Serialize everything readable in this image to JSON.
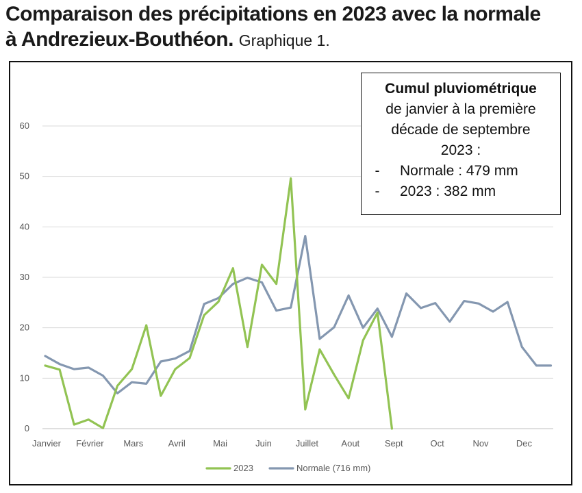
{
  "header": {
    "title_line1": "Comparaison des précipitations en 2023 avec la normale",
    "title_line2": "à Andrezieux-Bouthéon.",
    "subtitle": "Graphique 1."
  },
  "infobox": {
    "heading": "Cumul pluviométrique",
    "text1": "de janvier à la première",
    "text2": "décade de septembre",
    "text3": "2023 :",
    "bullet_marker": "-",
    "item1": "Normale : 479 mm",
    "item2": "2023 : 382 mm"
  },
  "chart_data": {
    "type": "line",
    "ylim": [
      0,
      60
    ],
    "yticks": [
      "0",
      "10",
      "20",
      "30",
      "40",
      "50",
      "60"
    ],
    "grid": "horizontal",
    "legend_position": "bottom",
    "month_labels": [
      "Janvier",
      "Février",
      "Mars",
      "Avril",
      "Mai",
      "Juin",
      "Juillet",
      "Aout",
      "Sept",
      "Oct",
      "Nov",
      "Dec"
    ],
    "series": [
      {
        "name": "2023",
        "color": "#92c353",
        "values": [
          12.5,
          11.7,
          0.8,
          1.8,
          0.1,
          8.5,
          11.8,
          20.5,
          6.5,
          11.8,
          14.0,
          22.5,
          25.2,
          31.8,
          16.2,
          32.5,
          28.7,
          49.6,
          3.8,
          15.7,
          10.7,
          6.0,
          17.5,
          23.0,
          0.0
        ]
      },
      {
        "name": "Normale (716 mm)",
        "color": "#8497b0",
        "values": [
          14.4,
          12.8,
          11.8,
          12.1,
          10.5,
          7.0,
          9.2,
          8.9,
          13.3,
          13.9,
          15.4,
          24.7,
          25.9,
          28.7,
          29.9,
          29.0,
          23.4,
          24.0,
          38.2,
          17.8,
          20.1,
          26.4,
          20.0,
          23.8,
          18.2,
          26.8,
          23.9,
          24.9,
          21.2,
          25.3,
          24.8,
          23.2,
          25.1,
          16.2,
          12.5,
          12.5
        ]
      }
    ]
  }
}
